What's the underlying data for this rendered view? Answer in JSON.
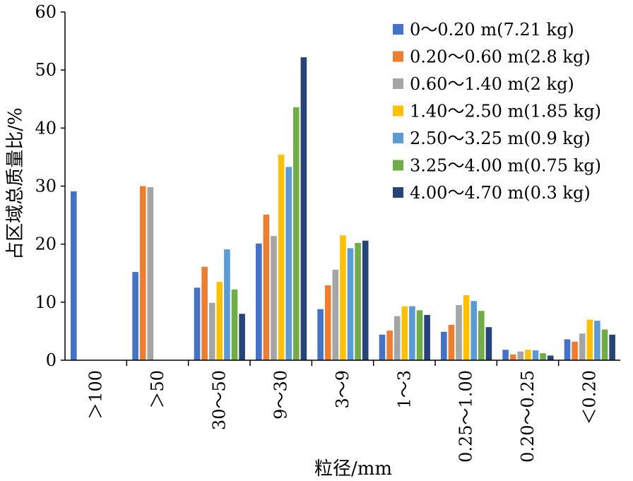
{
  "chart_data": {
    "type": "bar",
    "title": "",
    "xlabel": "粒径/mm",
    "ylabel": "占区域总质量比/%",
    "ylim": [
      0,
      60
    ],
    "yticks": [
      0,
      10,
      20,
      30,
      40,
      50,
      60
    ],
    "yticks_labels": [
      "0",
      "10",
      "20",
      "30",
      "40",
      "50",
      "60"
    ],
    "grid": false,
    "legend_position": "top-right",
    "categories": [
      ">100",
      ">50",
      "30～50",
      "9～30",
      "3～9",
      "1～3",
      "0.25～1.00",
      "0.20～0.25",
      "<0.20"
    ],
    "categories_display": [
      "＞100",
      "＞50",
      "30～50",
      "9～30",
      "3～9",
      "1～3",
      "0.25～1.00",
      "0.20～0.25",
      "＜0.20"
    ],
    "series": [
      {
        "name": "0～0.20 m(7.21 kg)",
        "color": "#4472c4",
        "values": [
          29.1,
          15.2,
          12.5,
          20.1,
          8.8,
          4.4,
          4.9,
          1.8,
          3.6
        ]
      },
      {
        "name": "0.20～0.60 m(2.8 kg)",
        "color": "#ed7d31",
        "values": [
          0,
          30.0,
          16.1,
          25.1,
          12.9,
          5.1,
          6.1,
          1.0,
          3.2
        ]
      },
      {
        "name": "0.60～1.40 m(2 kg)",
        "color": "#a5a5a5",
        "values": [
          0,
          29.8,
          9.9,
          21.4,
          15.6,
          7.6,
          9.5,
          1.5,
          4.6
        ]
      },
      {
        "name": "1.40～2.50 m(1.85 kg)",
        "color": "#ffc000",
        "values": [
          0,
          0,
          13.5,
          35.4,
          21.5,
          9.3,
          11.2,
          1.8,
          7.0
        ]
      },
      {
        "name": "2.50～3.25 m(0.9 kg)",
        "color": "#5b9bd5",
        "values": [
          0,
          0,
          19.1,
          33.3,
          19.3,
          9.3,
          10.2,
          1.7,
          6.8
        ]
      },
      {
        "name": "3.25～4.00 m(0.75 kg)",
        "color": "#70ad47",
        "values": [
          0,
          0,
          12.2,
          43.6,
          20.2,
          8.6,
          8.5,
          1.2,
          5.3
        ]
      },
      {
        "name": "4.00～4.70 m(0.3 kg)",
        "color": "#264478",
        "values": [
          0,
          0,
          8.0,
          52.2,
          20.6,
          7.8,
          5.7,
          0.8,
          4.4
        ]
      }
    ]
  }
}
